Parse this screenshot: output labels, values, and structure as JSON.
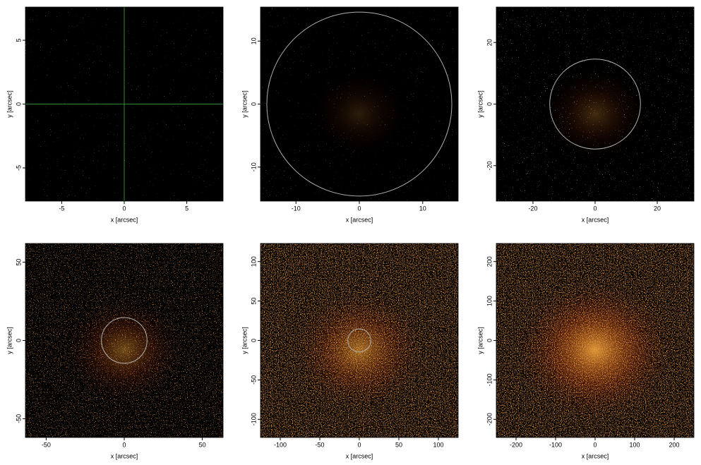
{
  "chart_data": [
    {
      "type": "image",
      "xlabel": "x [arcsec]",
      "ylabel": "y [arcsec]",
      "xlim": [
        -7.9,
        7.9
      ],
      "ylim": [
        -7.6,
        7.6
      ],
      "xticks": [
        -5,
        0,
        5
      ],
      "yticks": [
        -5,
        0,
        5
      ],
      "crosshair": [
        0,
        0
      ],
      "crosshair_color": "#2e8b2e"
    },
    {
      "type": "image",
      "xlabel": "x [arcsec]",
      "ylabel": "y [arcsec]",
      "xlim": [
        -15.6,
        15.6
      ],
      "ylim": [
        -15.4,
        15.4
      ],
      "xticks": [
        -10,
        0,
        10
      ],
      "yticks": [
        -10,
        0,
        10
      ],
      "circle_radius": 14.6,
      "circle_color": "#b0b0b0"
    },
    {
      "type": "image",
      "xlabel": "x [arcsec]",
      "ylabel": "y [arcsec]",
      "xlim": [
        -31.8,
        31.8
      ],
      "ylim": [
        -31.5,
        31.5
      ],
      "xticks": [
        -20,
        0,
        20
      ],
      "yticks": [
        -20,
        0,
        20
      ],
      "circle_radius": 14.6,
      "circle_color": "#b0b0b0"
    },
    {
      "type": "image",
      "xlabel": "x [arcsec]",
      "ylabel": "y [arcsec]",
      "xlim": [
        -63.3,
        63.3
      ],
      "ylim": [
        -62,
        62
      ],
      "xticks": [
        -50,
        0,
        50
      ],
      "yticks": [
        -50,
        0,
        50
      ],
      "circle_radius": 14.6,
      "circle_color": "#b0b0b0"
    },
    {
      "type": "image",
      "xlabel": "x [arcsec]",
      "ylabel": "y [arcsec]",
      "xlim": [
        -125,
        125
      ],
      "ylim": [
        -123,
        123
      ],
      "xticks": [
        -100,
        -50,
        0,
        50,
        100
      ],
      "yticks": [
        -100,
        -50,
        0,
        50,
        100
      ],
      "circle_radius": 14.6,
      "circle_color": "#b0b0b0"
    },
    {
      "type": "image",
      "xlabel": "x [arcsec]",
      "ylabel": "y [arcsec]",
      "xlim": [
        -250,
        250
      ],
      "ylim": [
        -246,
        246
      ],
      "xticks": [
        -200,
        -100,
        0,
        100,
        200
      ],
      "yticks": [
        -200,
        -100,
        0,
        100,
        200
      ]
    }
  ]
}
